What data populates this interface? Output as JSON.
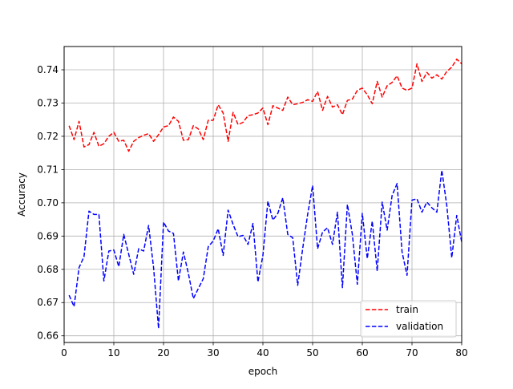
{
  "chart_data": {
    "type": "line",
    "title": "",
    "xlabel": "epoch",
    "ylabel": "Accuracy",
    "xlim": [
      0,
      80
    ],
    "ylim": [
      0.658,
      0.747
    ],
    "x_ticks": [
      0,
      10,
      20,
      30,
      40,
      50,
      60,
      70,
      80
    ],
    "y_ticks": [
      0.66,
      0.67,
      0.68,
      0.69,
      0.7,
      0.71,
      0.72,
      0.73,
      0.74
    ],
    "grid": true,
    "legend_position": "lower right",
    "x": [
      1,
      2,
      3,
      4,
      5,
      6,
      7,
      8,
      9,
      10,
      11,
      12,
      13,
      14,
      15,
      16,
      17,
      18,
      19,
      20,
      21,
      22,
      23,
      24,
      25,
      26,
      27,
      28,
      29,
      30,
      31,
      32,
      33,
      34,
      35,
      36,
      37,
      38,
      39,
      40,
      41,
      42,
      43,
      44,
      45,
      46,
      47,
      48,
      49,
      50,
      51,
      52,
      53,
      54,
      55,
      56,
      57,
      58,
      59,
      60,
      61,
      62,
      63,
      64,
      65,
      66,
      67,
      68,
      69,
      70,
      71,
      72,
      73,
      74,
      75,
      76,
      77,
      78,
      79,
      80
    ],
    "series": [
      {
        "name": "train",
        "color": "#ff0000",
        "style": "dashed",
        "values": [
          0.7232,
          0.719,
          0.7245,
          0.7168,
          0.7175,
          0.7212,
          0.717,
          0.7178,
          0.72,
          0.7212,
          0.7185,
          0.7188,
          0.7155,
          0.7185,
          0.7196,
          0.7203,
          0.7208,
          0.7185,
          0.7205,
          0.7228,
          0.7232,
          0.7258,
          0.7245,
          0.7188,
          0.719,
          0.7232,
          0.7222,
          0.719,
          0.7248,
          0.7248,
          0.7295,
          0.727,
          0.7185,
          0.7272,
          0.7235,
          0.7242,
          0.7262,
          0.7265,
          0.727,
          0.7285,
          0.7235,
          0.7292,
          0.7285,
          0.7278,
          0.7318,
          0.7295,
          0.7298,
          0.7302,
          0.731,
          0.7305,
          0.7335,
          0.7278,
          0.732,
          0.7288,
          0.7295,
          0.7265,
          0.7308,
          0.7312,
          0.7338,
          0.7345,
          0.7325,
          0.7298,
          0.7365,
          0.7318,
          0.7352,
          0.7362,
          0.7382,
          0.7345,
          0.7338,
          0.7345,
          0.7418,
          0.7365,
          0.7392,
          0.7375,
          0.7385,
          0.7372,
          0.7395,
          0.7408,
          0.7432,
          0.7418
        ]
      },
      {
        "name": "validation",
        "color": "#0000ff",
        "style": "dashed",
        "values": [
          0.6722,
          0.6688,
          0.6805,
          0.6838,
          0.6975,
          0.6965,
          0.6965,
          0.6765,
          0.6855,
          0.6858,
          0.6808,
          0.6905,
          0.6845,
          0.6785,
          0.6862,
          0.6855,
          0.6932,
          0.6805,
          0.6622,
          0.6942,
          0.6915,
          0.6908,
          0.6765,
          0.6852,
          0.6788,
          0.6712,
          0.6742,
          0.6772,
          0.6868,
          0.6885,
          0.6922,
          0.6842,
          0.6978,
          0.6935,
          0.6898,
          0.6902,
          0.6875,
          0.6938,
          0.6762,
          0.6842,
          0.7005,
          0.6948,
          0.6968,
          0.7015,
          0.6905,
          0.6895,
          0.6752,
          0.6862,
          0.6965,
          0.7052,
          0.6862,
          0.6912,
          0.6925,
          0.6875,
          0.6972,
          0.6745,
          0.6995,
          0.6905,
          0.6755,
          0.6968,
          0.6832,
          0.6945,
          0.6795,
          0.7002,
          0.6918,
          0.7022,
          0.7058,
          0.6852,
          0.6782,
          0.7008,
          0.7012,
          0.6972,
          0.7002,
          0.6985,
          0.6972,
          0.7098,
          0.6992,
          0.6835,
          0.6962,
          0.6882
        ]
      }
    ]
  }
}
